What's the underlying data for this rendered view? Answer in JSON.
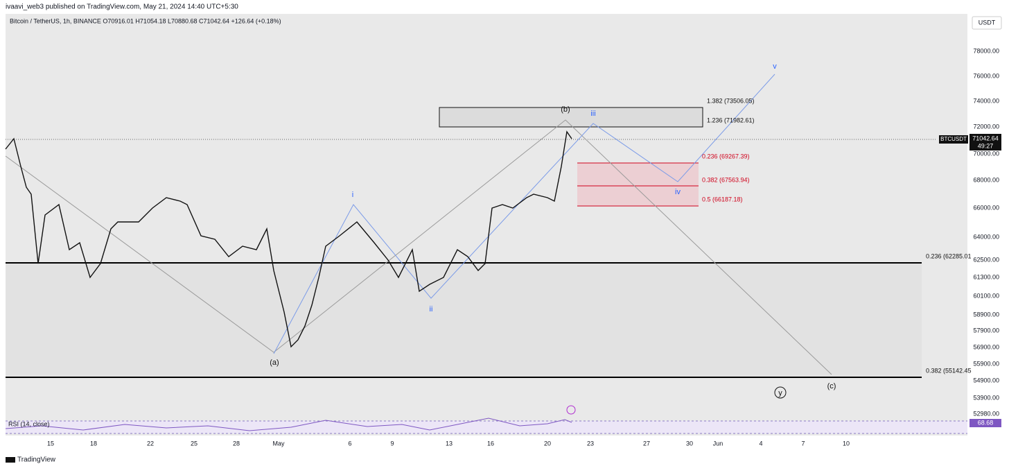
{
  "header": {
    "publisher": "ivaavi_web3 published on TradingView.com, May 21, 2024 14:40 UTC+5:30",
    "symbol_line": "Bitcoin / TetherUS, 1h, BINANCE  O70916.01 H71054.18 L70880.68 C71042.64 +126.64 (+0.18%)",
    "currency": "USDT"
  },
  "price_axis": [
    "78000.00",
    "76000.00",
    "74000.00",
    "72000.00",
    "70000.00",
    "68000.00",
    "66000.00",
    "64000.00",
    "62500.00",
    "61300.00",
    "60100.00",
    "58900.00",
    "57900.00",
    "56900.00",
    "55900.00",
    "54900.00",
    "53900.00",
    "52980.00"
  ],
  "time_axis": [
    "15",
    "18",
    "22",
    "25",
    "28",
    "May",
    "6",
    "9",
    "13",
    "16",
    "20",
    "23",
    "27",
    "30",
    "Jun",
    "4",
    "7",
    "10"
  ],
  "price_tag": {
    "symbol": "BTCUSDT",
    "price": "71042.64",
    "countdown": "49:27"
  },
  "wave_labels": [
    "(b)",
    "iii",
    "i",
    "ii",
    "iv",
    "v",
    "(a)",
    "(c)",
    "y"
  ],
  "fib_labels": [
    "1.382 (73506.05)",
    "1.236 (71982.61)",
    "0.236 (69267.39)",
    "0.382 (67563.94)",
    "0.5 (66187.18)",
    "0.236 (62285.01",
    "0.382 (55142.45"
  ],
  "rsi": {
    "label": "RSI (14, close)",
    "value": "68.68"
  },
  "footer": {
    "brand": "TradingView"
  }
}
